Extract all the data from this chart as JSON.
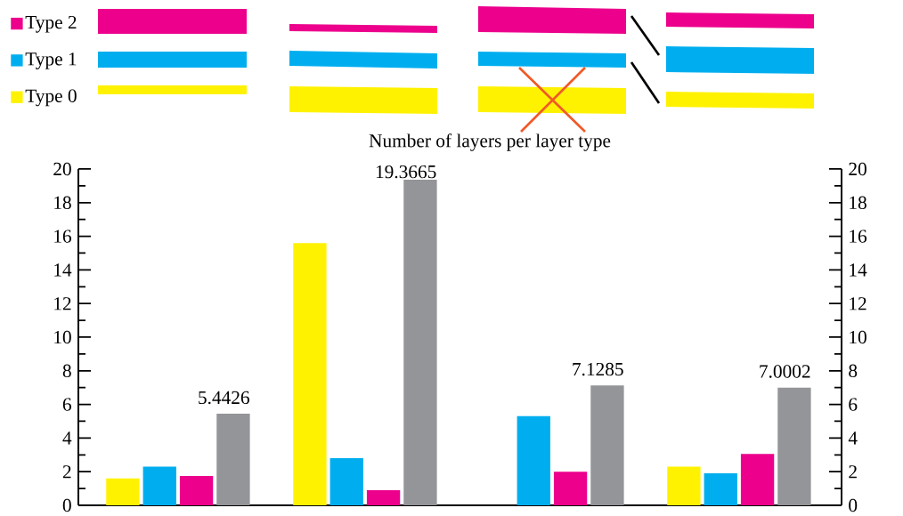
{
  "chart_data": {
    "type": "bar",
    "title": "Number of layers per layer type",
    "categories": [
      null,
      null,
      null,
      null
    ],
    "series": [
      {
        "name": "Type 0",
        "color": "#fff200",
        "values": [
          1.6,
          15.6,
          null,
          2.3
        ]
      },
      {
        "name": "Type 1",
        "color": "#00aeef",
        "values": [
          2.3,
          2.8,
          5.3,
          1.9
        ]
      },
      {
        "name": "Type 2",
        "color": "#ec008c",
        "values": [
          1.75,
          0.9,
          2.0,
          3.05
        ]
      },
      {
        "color": "#939598",
        "values": [
          5.4426,
          19.3665,
          7.1285,
          7.0002
        ],
        "value_labels": [
          "5.4426",
          "19.3665",
          "7.1285",
          "7.0002"
        ]
      }
    ],
    "ylim": [
      0,
      20
    ],
    "yticks": [
      0,
      2,
      4,
      6,
      8,
      10,
      12,
      14,
      16,
      18,
      20
    ],
    "y2lim": [
      0,
      20
    ],
    "y2ticks": [
      0,
      2,
      4,
      6,
      8,
      10,
      12,
      14,
      16,
      18,
      20
    ],
    "legend": "top left",
    "grid": false
  }
}
